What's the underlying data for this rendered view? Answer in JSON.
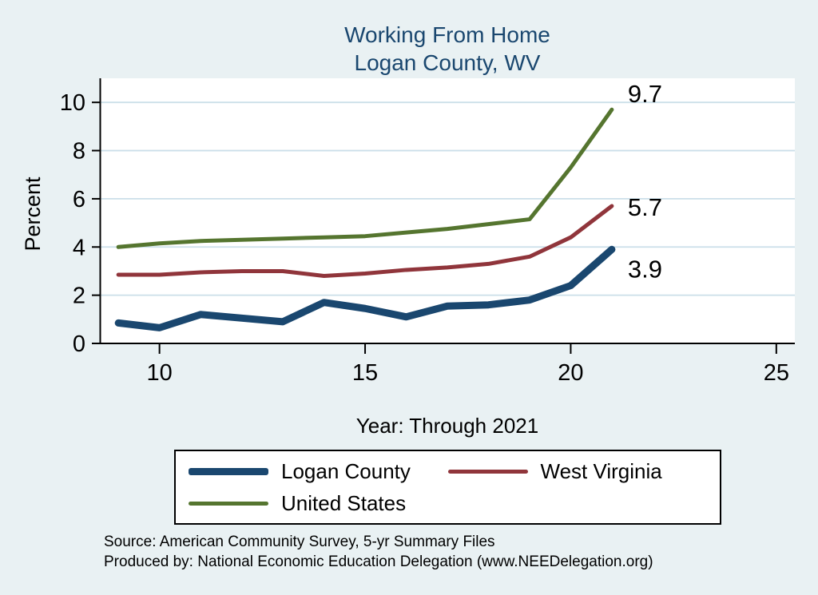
{
  "title": {
    "line1": "Working From Home",
    "line2": "Logan County, WV"
  },
  "ylabel": "Percent",
  "xlabel": "Year: Through 2021",
  "source_line1": "Source: American Community Survey, 5-yr Summary Files",
  "source_line2": "Produced by: National Economic Education Delegation (www.NEEDelegation.org)",
  "colors": {
    "background": "#e9f1f3",
    "plot_background": "#ffffff",
    "title": "#1a476f",
    "gridline": "#cbdfe9",
    "axis": "#000000"
  },
  "chart_data": {
    "type": "line",
    "title": "Working From Home Logan County, WV",
    "xlabel": "Year: Through 2021",
    "ylabel": "Percent",
    "x": [
      9,
      10,
      11,
      12,
      13,
      14,
      15,
      16,
      17,
      18,
      19,
      20,
      21
    ],
    "series": [
      {
        "name": "Logan County",
        "color": "#1a476f",
        "width": 9,
        "end_label": "3.9",
        "label_dy": 35,
        "values": [
          0.85,
          0.65,
          1.2,
          1.05,
          0.9,
          1.7,
          1.45,
          1.1,
          1.55,
          1.6,
          1.8,
          2.4,
          3.9
        ]
      },
      {
        "name": "West Virginia",
        "color": "#90353b",
        "width": 5,
        "end_label": "5.7",
        "label_dy": 12,
        "values": [
          2.85,
          2.85,
          2.95,
          3.0,
          3.0,
          2.8,
          2.9,
          3.05,
          3.15,
          3.3,
          3.6,
          4.4,
          5.7
        ]
      },
      {
        "name": "United States",
        "color": "#55752f",
        "width": 5,
        "end_label": "9.7",
        "label_dy": -9,
        "values": [
          4.0,
          4.15,
          4.25,
          4.3,
          4.35,
          4.4,
          4.45,
          4.6,
          4.75,
          4.95,
          5.15,
          7.3,
          9.7
        ]
      }
    ],
    "xticks": [
      10,
      15,
      20,
      25
    ],
    "yticks": [
      0,
      2,
      4,
      6,
      8,
      10
    ],
    "xlim": [
      8.55,
      25.45
    ],
    "ylim": [
      0,
      11
    ],
    "grid": true,
    "legend_position": "bottom"
  }
}
